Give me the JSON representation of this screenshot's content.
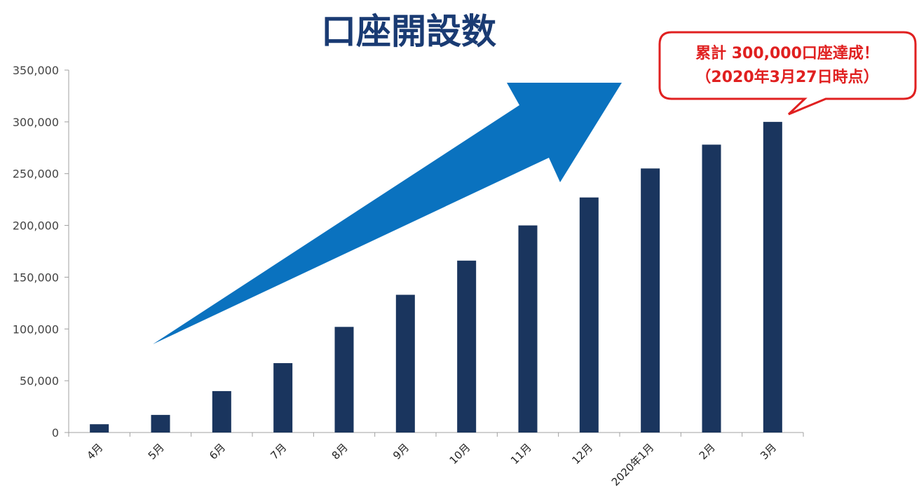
{
  "title": "口座開設数",
  "callout": {
    "line1": "累計 300,000口座達成！",
    "line2": "（2020年3月27日時点）"
  },
  "colors": {
    "bar": "#1a355e",
    "arrow": "#0a72bf",
    "title": "#1a3b73",
    "callout_border": "#e02020",
    "callout_text": "#e02020",
    "axis": "#a0a0a0"
  },
  "chart_data": {
    "type": "bar",
    "title": "口座開設数",
    "categories": [
      "4月",
      "5月",
      "6月",
      "7月",
      "8月",
      "9月",
      "10月",
      "11月",
      "12月",
      "2020年1月",
      "2月",
      "3月"
    ],
    "values": [
      8000,
      17000,
      40000,
      67000,
      102000,
      133000,
      166000,
      200000,
      227000,
      255000,
      278000,
      300000
    ],
    "ylim": [
      0,
      350000
    ],
    "yticks": [
      0,
      50000,
      100000,
      150000,
      200000,
      250000,
      300000,
      350000
    ],
    "ytick_labels": [
      "0",
      "50,000",
      "100,000",
      "150,000",
      "200,000",
      "250,000",
      "300,000",
      "350,000"
    ],
    "grid": false,
    "legend": "none"
  }
}
